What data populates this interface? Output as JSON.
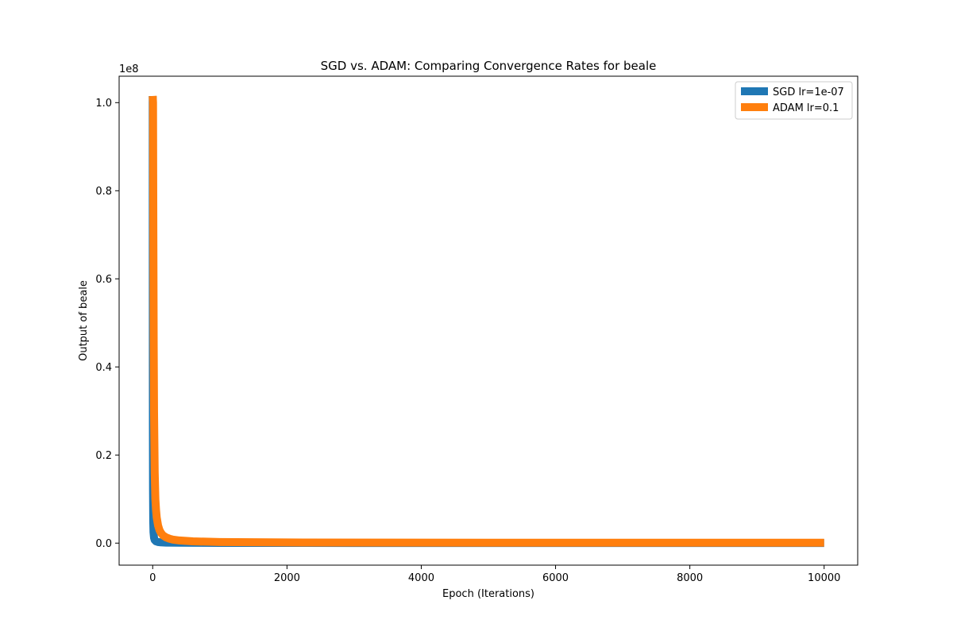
{
  "chart_data": {
    "type": "line",
    "title": "SGD vs. ADAM: Comparing Convergence Rates for beale",
    "xlabel": "Epoch (Iterations)",
    "ylabel": "Output of beale",
    "y_scale_label": "1e8",
    "xlim": [
      -500,
      10500
    ],
    "ylim": [
      -0.05,
      1.06
    ],
    "x_ticks": [
      0,
      2000,
      4000,
      6000,
      8000,
      10000
    ],
    "x_tick_labels": [
      "0",
      "2000",
      "4000",
      "6000",
      "8000",
      "10000"
    ],
    "y_ticks": [
      0.0,
      0.2,
      0.4,
      0.6,
      0.8,
      1.0
    ],
    "y_tick_labels": [
      "0.0",
      "0.2",
      "0.4",
      "0.6",
      "0.8",
      "1.0"
    ],
    "legend_position": "top-right",
    "grid": false,
    "series": [
      {
        "name": "SGD lr=1e-07",
        "color": "#1f77b4",
        "x": [
          0,
          1,
          2,
          3,
          5,
          8,
          12,
          20,
          30,
          50,
          80,
          120,
          200,
          400,
          1000,
          3000,
          6000,
          10000
        ],
        "y": [
          1.015,
          0.62,
          0.4,
          0.26,
          0.12,
          0.05,
          0.025,
          0.012,
          0.007,
          0.004,
          0.0025,
          0.0018,
          0.0012,
          0.0008,
          0.0005,
          0.0003,
          0.0002,
          0.0002
        ]
      },
      {
        "name": "ADAM lr=0.1",
        "color": "#ff7f0e",
        "x": [
          0,
          2,
          5,
          10,
          15,
          20,
          30,
          40,
          50,
          60,
          80,
          100,
          120,
          150,
          200,
          250,
          300,
          400,
          600,
          1000,
          2000,
          5000,
          10000
        ],
        "y": [
          1.015,
          1.01,
          1.0,
          0.7,
          0.45,
          0.3,
          0.16,
          0.1,
          0.075,
          0.058,
          0.04,
          0.03,
          0.024,
          0.018,
          0.013,
          0.01,
          0.008,
          0.006,
          0.004,
          0.0025,
          0.0015,
          0.001,
          0.001
        ]
      }
    ]
  }
}
